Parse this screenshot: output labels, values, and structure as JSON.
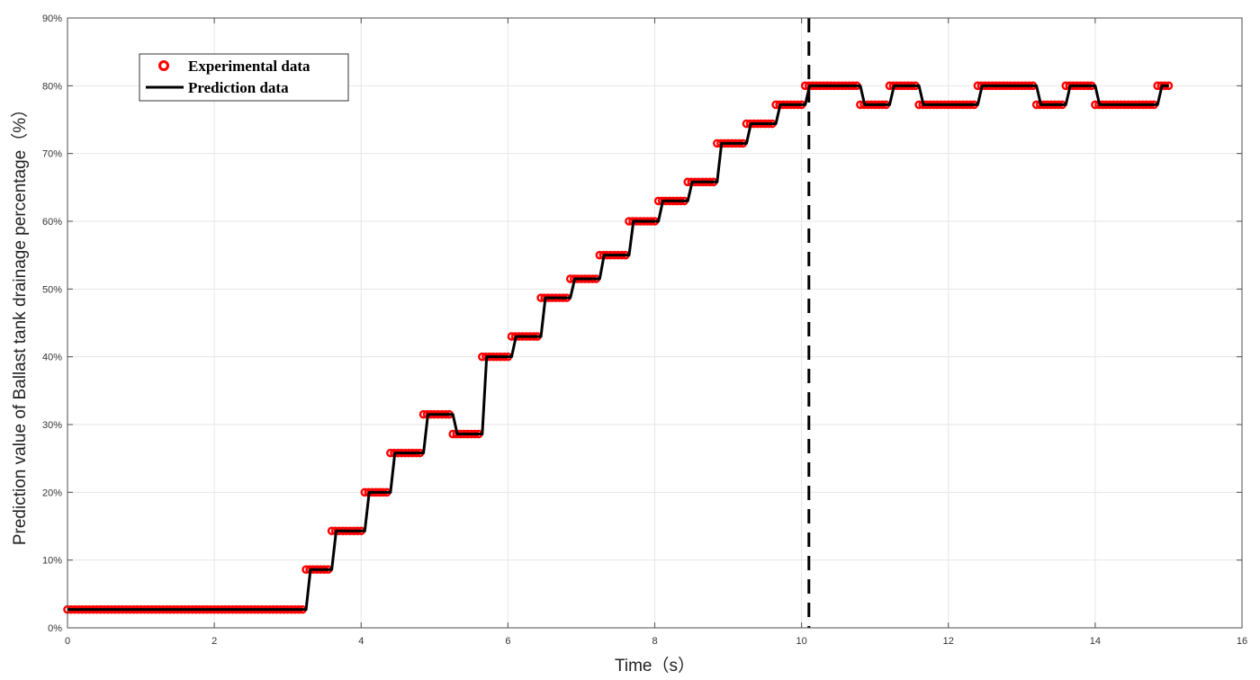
{
  "chart_data": {
    "type": "line",
    "xlabel": "Time（s）",
    "ylabel": "Prediction value of Ballast tank drainage percentage（%）",
    "xlim": [
      0,
      16
    ],
    "ylim": [
      0,
      90
    ],
    "x_ticks": [
      "0",
      "2",
      "4",
      "6",
      "8",
      "10",
      "12",
      "14",
      "16"
    ],
    "y_ticks": [
      "0%",
      "10%",
      "20%",
      "30%",
      "40%",
      "50%",
      "60%",
      "70%",
      "80%",
      "90%"
    ],
    "grid": true,
    "legend_position": "top-left",
    "vertical_marker_x": 10.1,
    "colors": {
      "experimental": "#ff0000",
      "prediction": "#000000",
      "grid": "#e6e6e6",
      "axis": "#4d4d4d"
    },
    "series": [
      {
        "name": "Experimental data",
        "style": "markers"
      },
      {
        "name": "Prediction data",
        "style": "step-line"
      }
    ],
    "levels": [
      {
        "x_start": 0.0,
        "x_end": 3.25,
        "y": 2.7
      },
      {
        "x_start": 3.25,
        "x_end": 3.6,
        "y": 8.6
      },
      {
        "x_start": 3.6,
        "x_end": 4.05,
        "y": 14.3
      },
      {
        "x_start": 4.05,
        "x_end": 4.4,
        "y": 20.0
      },
      {
        "x_start": 4.4,
        "x_end": 4.85,
        "y": 25.8
      },
      {
        "x_start": 4.85,
        "x_end": 5.25,
        "y": 31.5
      },
      {
        "x_start": 5.25,
        "x_end": 5.65,
        "y": 28.6
      },
      {
        "x_start": 5.65,
        "x_end": 6.05,
        "y": 40.0
      },
      {
        "x_start": 6.05,
        "x_end": 6.45,
        "y": 43.0
      },
      {
        "x_start": 6.45,
        "x_end": 6.85,
        "y": 48.7
      },
      {
        "x_start": 6.85,
        "x_end": 7.25,
        "y": 51.5
      },
      {
        "x_start": 7.25,
        "x_end": 7.65,
        "y": 55.0
      },
      {
        "x_start": 7.65,
        "x_end": 8.05,
        "y": 60.0
      },
      {
        "x_start": 8.05,
        "x_end": 8.45,
        "y": 63.0
      },
      {
        "x_start": 8.45,
        "x_end": 8.85,
        "y": 65.8
      },
      {
        "x_start": 8.85,
        "x_end": 9.25,
        "y": 71.5
      },
      {
        "x_start": 9.25,
        "x_end": 9.65,
        "y": 74.4
      },
      {
        "x_start": 9.65,
        "x_end": 10.05,
        "y": 77.2
      },
      {
        "x_start": 10.05,
        "x_end": 10.8,
        "y": 80.0
      },
      {
        "x_start": 10.8,
        "x_end": 11.2,
        "y": 77.2
      },
      {
        "x_start": 11.2,
        "x_end": 11.6,
        "y": 80.0
      },
      {
        "x_start": 11.6,
        "x_end": 12.4,
        "y": 77.2
      },
      {
        "x_start": 12.4,
        "x_end": 13.2,
        "y": 80.0
      },
      {
        "x_start": 13.2,
        "x_end": 13.6,
        "y": 77.2
      },
      {
        "x_start": 13.6,
        "x_end": 14.0,
        "y": 80.0
      },
      {
        "x_start": 14.0,
        "x_end": 14.85,
        "y": 77.2
      },
      {
        "x_start": 14.85,
        "x_end": 15.0,
        "y": 80.0
      }
    ],
    "sample_step": 0.05
  }
}
